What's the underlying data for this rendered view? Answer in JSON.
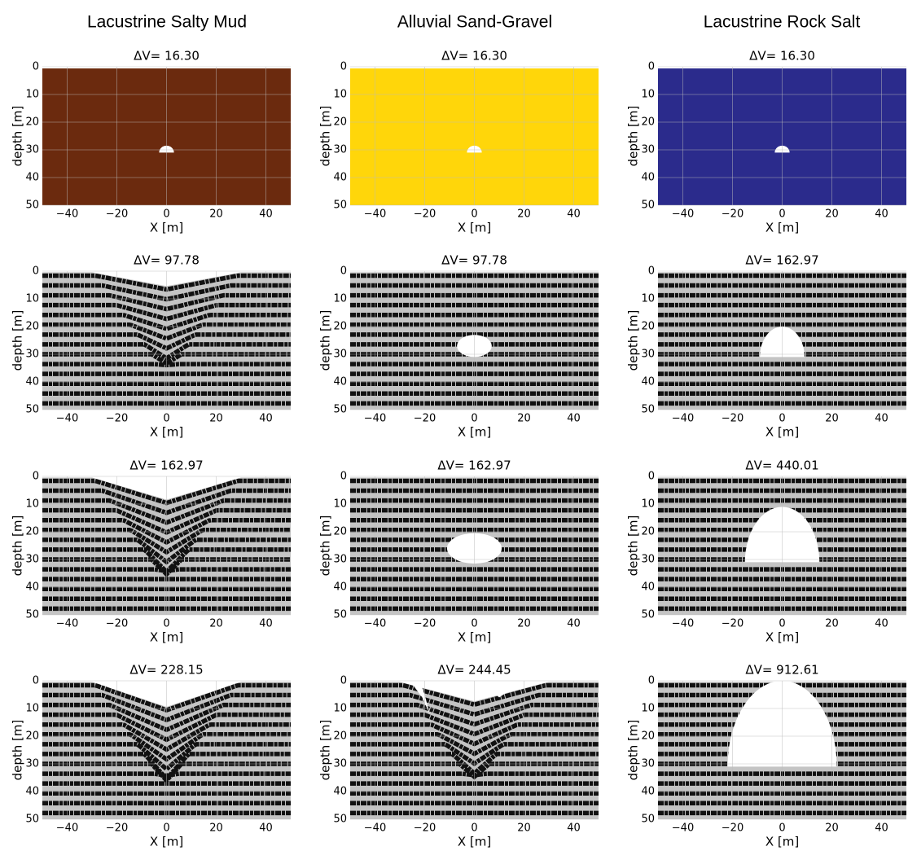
{
  "columns": [
    "Lacustrine Salty Mud",
    "Alluvial Sand-Gravel",
    "Lacustrine Rock Salt"
  ],
  "chart_data": [
    {
      "type": "image",
      "title": "ΔV= 16.30",
      "color": "#6b2a0e",
      "xlabel": "X [m]",
      "ylabel": "depth [m]",
      "xlim": [
        -50,
        50
      ],
      "ylim": [
        50,
        0
      ],
      "xticks": [
        {
          "value": -40,
          "label": "−40"
        },
        {
          "value": -20,
          "label": "−20"
        },
        0,
        20,
        40
      ],
      "yticks": [
        0,
        10,
        20,
        30,
        40,
        50
      ],
      "grid": true
    },
    {
      "type": "image",
      "title": "ΔV= 16.30",
      "color": "#ffd60a",
      "xlabel": "X [m]",
      "ylabel": "depth [m]",
      "xlim": [
        -50,
        50
      ],
      "ylim": [
        50,
        0
      ],
      "xticks": [
        {
          "value": -40,
          "label": "−40"
        },
        {
          "value": -20,
          "label": "−20"
        },
        0,
        20,
        40
      ],
      "yticks": [
        0,
        10,
        20,
        30,
        40,
        50
      ],
      "grid": true
    },
    {
      "type": "image",
      "title": "ΔV= 16.30",
      "color": "#2b2b8c",
      "xlabel": "X [m]",
      "ylabel": "depth [m]",
      "xlim": [
        -50,
        50
      ],
      "ylim": [
        50,
        0
      ],
      "xticks": [
        {
          "value": -40,
          "label": "−40"
        },
        {
          "value": -20,
          "label": "−20"
        },
        0,
        20,
        40
      ],
      "yticks": [
        0,
        10,
        20,
        30,
        40,
        50
      ],
      "grid": true
    },
    {
      "type": "image",
      "title": "ΔV= 97.78",
      "xlabel": "X [m]",
      "ylabel": "depth [m]",
      "xlim": [
        -50,
        50
      ],
      "ylim": [
        50,
        0
      ],
      "xticks": [
        {
          "value": -40,
          "label": "−40"
        },
        {
          "value": -20,
          "label": "−20"
        },
        0,
        20,
        40
      ],
      "yticks": [
        0,
        10,
        20,
        30,
        40,
        50
      ],
      "grid": true
    },
    {
      "type": "image",
      "title": "ΔV= 97.78",
      "xlabel": "X [m]",
      "ylabel": "depth [m]",
      "xlim": [
        -50,
        50
      ],
      "ylim": [
        50,
        0
      ],
      "xticks": [
        {
          "value": -40,
          "label": "−40"
        },
        {
          "value": -20,
          "label": "−20"
        },
        0,
        20,
        40
      ],
      "yticks": [
        0,
        10,
        20,
        30,
        40,
        50
      ],
      "grid": true
    },
    {
      "type": "image",
      "title": "ΔV= 162.97",
      "xlabel": "X [m]",
      "ylabel": "depth [m]",
      "xlim": [
        -50,
        50
      ],
      "ylim": [
        50,
        0
      ],
      "xticks": [
        {
          "value": -40,
          "label": "−40"
        },
        {
          "value": -20,
          "label": "−20"
        },
        0,
        20,
        40
      ],
      "yticks": [
        0,
        10,
        20,
        30,
        40,
        50
      ],
      "grid": true
    },
    {
      "type": "image",
      "title": "ΔV= 162.97",
      "xlabel": "X [m]",
      "ylabel": "depth [m]",
      "xlim": [
        -50,
        50
      ],
      "ylim": [
        50,
        0
      ],
      "xticks": [
        {
          "value": -40,
          "label": "−40"
        },
        {
          "value": -20,
          "label": "−20"
        },
        0,
        20,
        40
      ],
      "yticks": [
        0,
        10,
        20,
        30,
        40,
        50
      ],
      "grid": true
    },
    {
      "type": "image",
      "title": "ΔV= 162.97",
      "xlabel": "X [m]",
      "ylabel": "depth [m]",
      "xlim": [
        -50,
        50
      ],
      "ylim": [
        50,
        0
      ],
      "xticks": [
        {
          "value": -40,
          "label": "−40"
        },
        {
          "value": -20,
          "label": "−20"
        },
        0,
        20,
        40
      ],
      "yticks": [
        0,
        10,
        20,
        30,
        40,
        50
      ],
      "grid": true
    },
    {
      "type": "image",
      "title": "ΔV= 440.01",
      "xlabel": "X [m]",
      "ylabel": "depth [m]",
      "xlim": [
        -50,
        50
      ],
      "ylim": [
        50,
        0
      ],
      "xticks": [
        {
          "value": -40,
          "label": "−40"
        },
        {
          "value": -20,
          "label": "−20"
        },
        0,
        20,
        40
      ],
      "yticks": [
        0,
        10,
        20,
        30,
        40,
        50
      ],
      "grid": true
    },
    {
      "type": "image",
      "title": "ΔV= 228.15",
      "xlabel": "X [m]",
      "ylabel": "depth [m]",
      "xlim": [
        -50,
        50
      ],
      "ylim": [
        50,
        0
      ],
      "xticks": [
        {
          "value": -40,
          "label": "−40"
        },
        {
          "value": -20,
          "label": "−20"
        },
        0,
        20,
        40
      ],
      "yticks": [
        0,
        10,
        20,
        30,
        40,
        50
      ],
      "grid": true
    },
    {
      "type": "image",
      "title": "ΔV= 244.45",
      "xlabel": "X [m]",
      "ylabel": "depth [m]",
      "xlim": [
        -50,
        50
      ],
      "ylim": [
        50,
        0
      ],
      "xticks": [
        {
          "value": -40,
          "label": "−40"
        },
        {
          "value": -20,
          "label": "−20"
        },
        0,
        20,
        40
      ],
      "yticks": [
        0,
        10,
        20,
        30,
        40,
        50
      ],
      "grid": true
    },
    {
      "type": "image",
      "title": "ΔV= 912.61",
      "xlabel": "X [m]",
      "ylabel": "depth [m]",
      "xlim": [
        -50,
        50
      ],
      "ylim": [
        50,
        0
      ],
      "xticks": [
        {
          "value": -40,
          "label": "−40"
        },
        {
          "value": -20,
          "label": "−20"
        },
        0,
        20,
        40
      ],
      "yticks": [
        0,
        10,
        20,
        30,
        40,
        50
      ],
      "grid": true
    }
  ]
}
